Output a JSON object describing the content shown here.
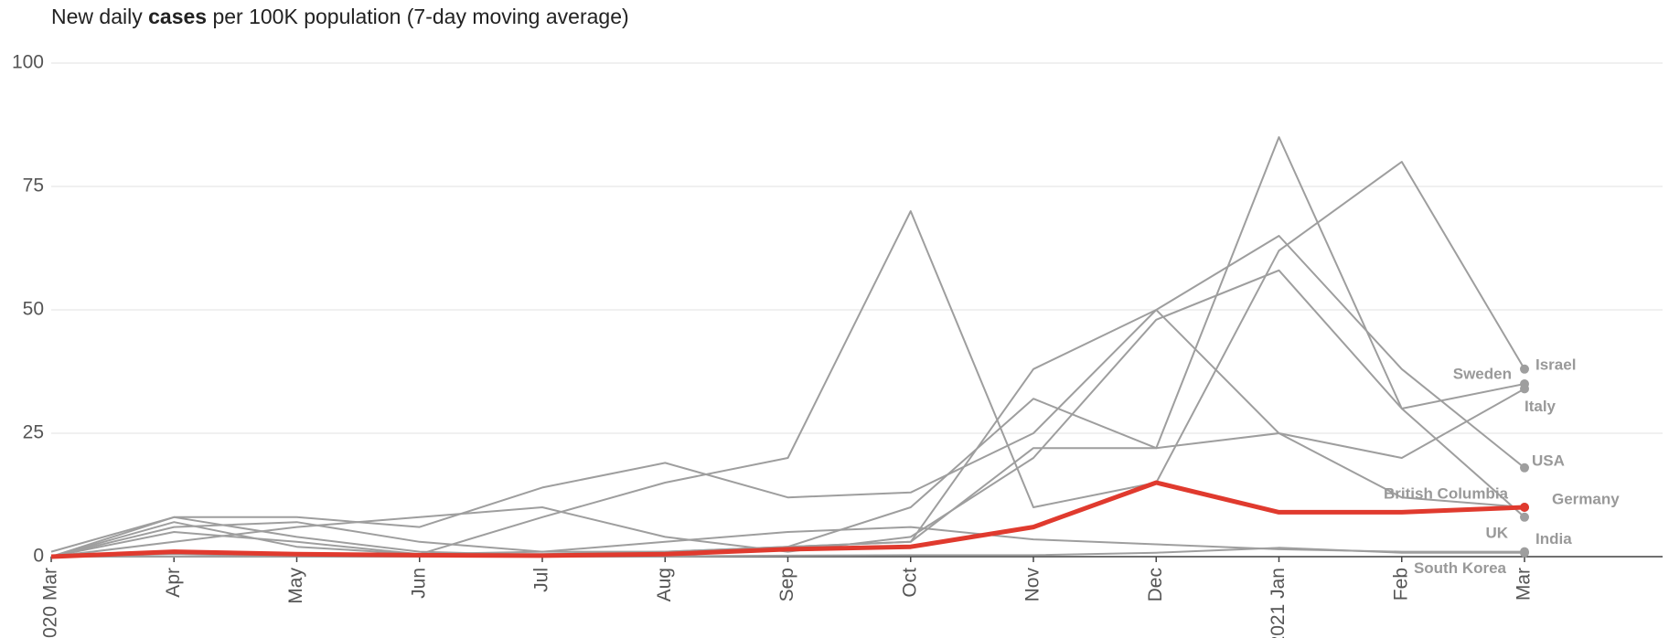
{
  "chart_data": {
    "type": "line",
    "title": [
      "New daily ",
      "cases",
      " per 100K population (7-day moving average)"
    ],
    "categories": [
      "2020 Mar",
      "Apr",
      "May",
      "Jun",
      "Jul",
      "Aug",
      "Sep",
      "Oct",
      "Nov",
      "Dec",
      "2021 Jan",
      "Feb",
      "Mar"
    ],
    "ylim": [
      0,
      100
    ],
    "yticks": [
      0,
      25,
      50,
      75,
      100
    ],
    "grid": true,
    "series": [
      {
        "name": "Israel",
        "color": "#9e9e9e",
        "values": [
          0,
          5,
          3,
          0.5,
          8,
          15,
          20,
          70,
          10,
          15,
          62,
          80,
          38
        ]
      },
      {
        "name": "Sweden",
        "color": "#9e9e9e",
        "values": [
          0,
          3,
          6,
          8,
          10,
          4,
          1,
          4,
          20,
          48,
          58,
          30,
          35
        ]
      },
      {
        "name": "Italy",
        "color": "#9e9e9e",
        "values": [
          1,
          8,
          4,
          1,
          0.3,
          0.5,
          2,
          3,
          38,
          50,
          25,
          20,
          34
        ]
      },
      {
        "name": "USA",
        "color": "#9e9e9e",
        "values": [
          0,
          8,
          8,
          6,
          14,
          19,
          12,
          13,
          25,
          50,
          65,
          38,
          18
        ]
      },
      {
        "name": "Germany",
        "color": "#9e9e9e",
        "values": [
          0,
          7,
          2,
          0.5,
          0.5,
          1,
          2,
          3,
          22,
          22,
          25,
          12,
          10
        ]
      },
      {
        "name": "UK",
        "color": "#9e9e9e",
        "values": [
          0,
          6,
          7,
          3,
          1,
          1,
          2,
          10,
          32,
          22,
          85,
          30,
          8
        ]
      },
      {
        "name": "India",
        "color": "#9e9e9e",
        "values": [
          0,
          0,
          0.1,
          0.5,
          1,
          3,
          5,
          6,
          3.5,
          2.5,
          1.5,
          1,
          1
        ]
      },
      {
        "name": "South Korea",
        "color": "#9e9e9e",
        "values": [
          0,
          0.5,
          0.1,
          0.1,
          0.1,
          0.1,
          0.2,
          0.3,
          0.3,
          0.8,
          1.8,
          0.8,
          0.8
        ]
      },
      {
        "name": "British Columbia",
        "color": "#e03a2e",
        "values": [
          0,
          1,
          0.5,
          0.3,
          0.2,
          0.5,
          1.5,
          2,
          6,
          15,
          9,
          9,
          10
        ]
      }
    ]
  }
}
